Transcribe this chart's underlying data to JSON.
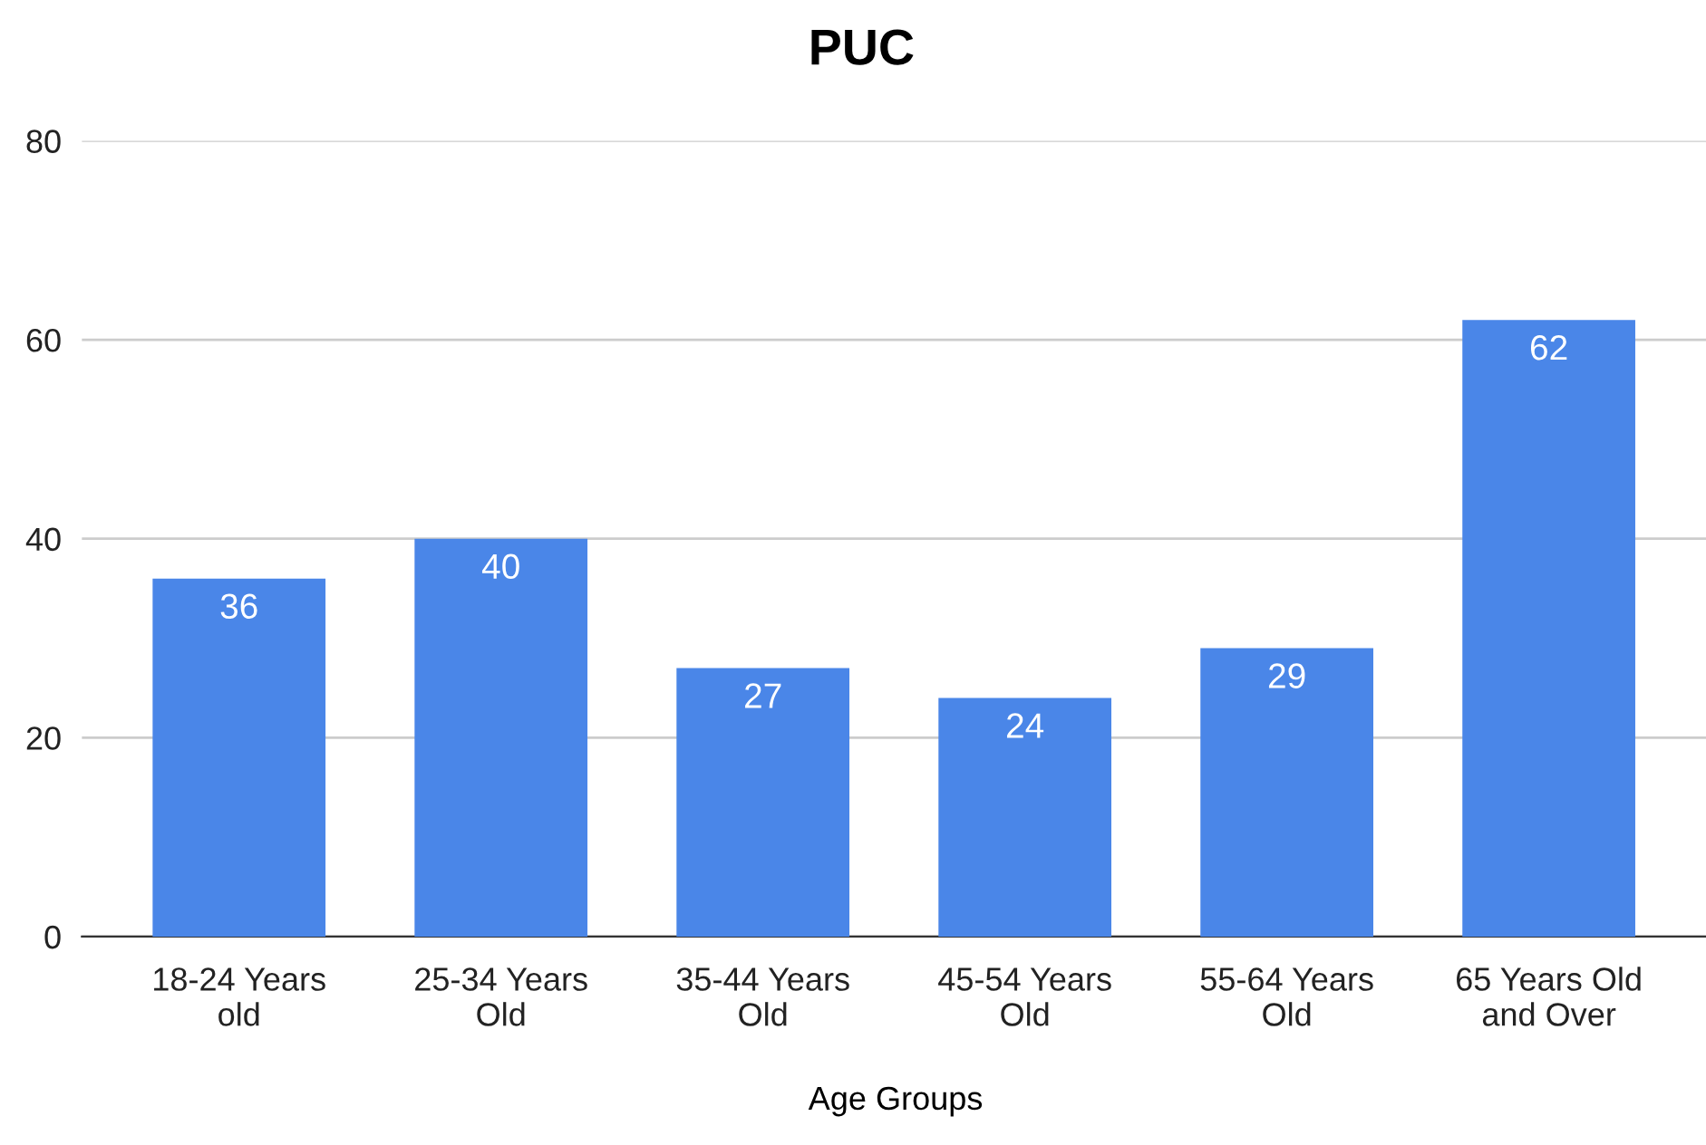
{
  "chart_data": {
    "type": "bar",
    "title": "PUC",
    "xlabel": "Age Groups",
    "categories": [
      "18-24 Years\nold",
      "25-34 Years\nOld",
      "35-44 Years\nOld",
      "45-54 Years\nOld",
      "55-64 Years\nOld",
      "65 Years Old\nand Over"
    ],
    "values": [
      36,
      40,
      27,
      24,
      29,
      62
    ],
    "color": "#4a86e8",
    "ylim": [
      0,
      80
    ],
    "yticks": [
      0,
      20,
      40,
      60,
      80
    ],
    "grid": "y",
    "data_labels": true
  }
}
